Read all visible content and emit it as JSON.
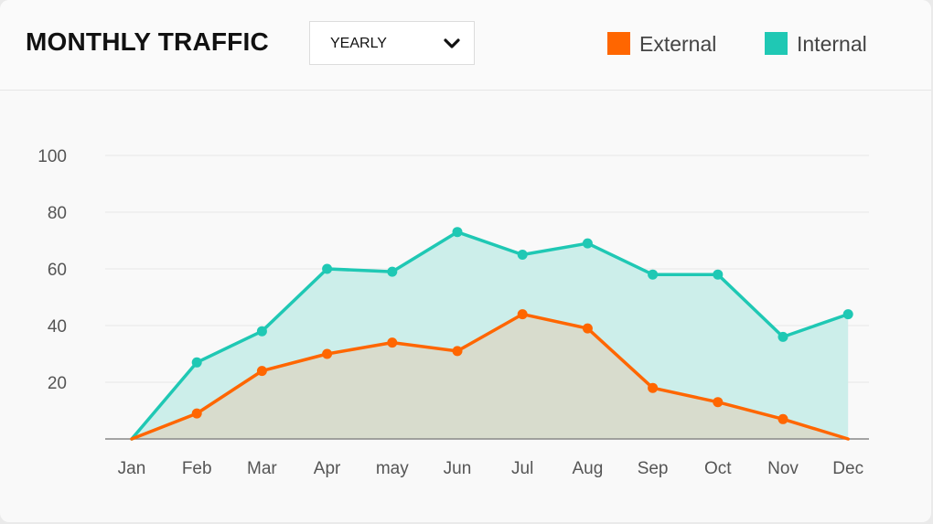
{
  "header": {
    "title": "MONTHLY TRAFFIC",
    "period_select": {
      "value": "YEARLY"
    }
  },
  "legend": [
    {
      "label": "External",
      "color": "#ff6600"
    },
    {
      "label": "Internal",
      "color": "#1fc8b4"
    }
  ],
  "icons": {
    "dropdown": "chevron-down-icon"
  },
  "chart_data": {
    "type": "area",
    "title": "MONTHLY TRAFFIC",
    "xlabel": "",
    "ylabel": "",
    "categories": [
      "Jan",
      "Feb",
      "Mar",
      "Apr",
      "may",
      "Jun",
      "Jul",
      "Aug",
      "Sep",
      "Oct",
      "Nov",
      "Dec"
    ],
    "series": [
      {
        "name": "Internal",
        "color": "#1fc8b4",
        "fill": "#cceeea",
        "values": [
          0,
          27,
          38,
          60,
          59,
          73,
          65,
          69,
          58,
          58,
          36,
          44
        ]
      },
      {
        "name": "External",
        "color": "#ff6600",
        "fill": "#d8dccd",
        "values": [
          0,
          9,
          24,
          30,
          34,
          31,
          44,
          39,
          18,
          13,
          7,
          0
        ]
      }
    ],
    "ylim": [
      0,
      100
    ],
    "yticks": [
      20,
      40,
      60,
      80,
      100
    ],
    "grid": true,
    "legend_position": "top-right"
  }
}
